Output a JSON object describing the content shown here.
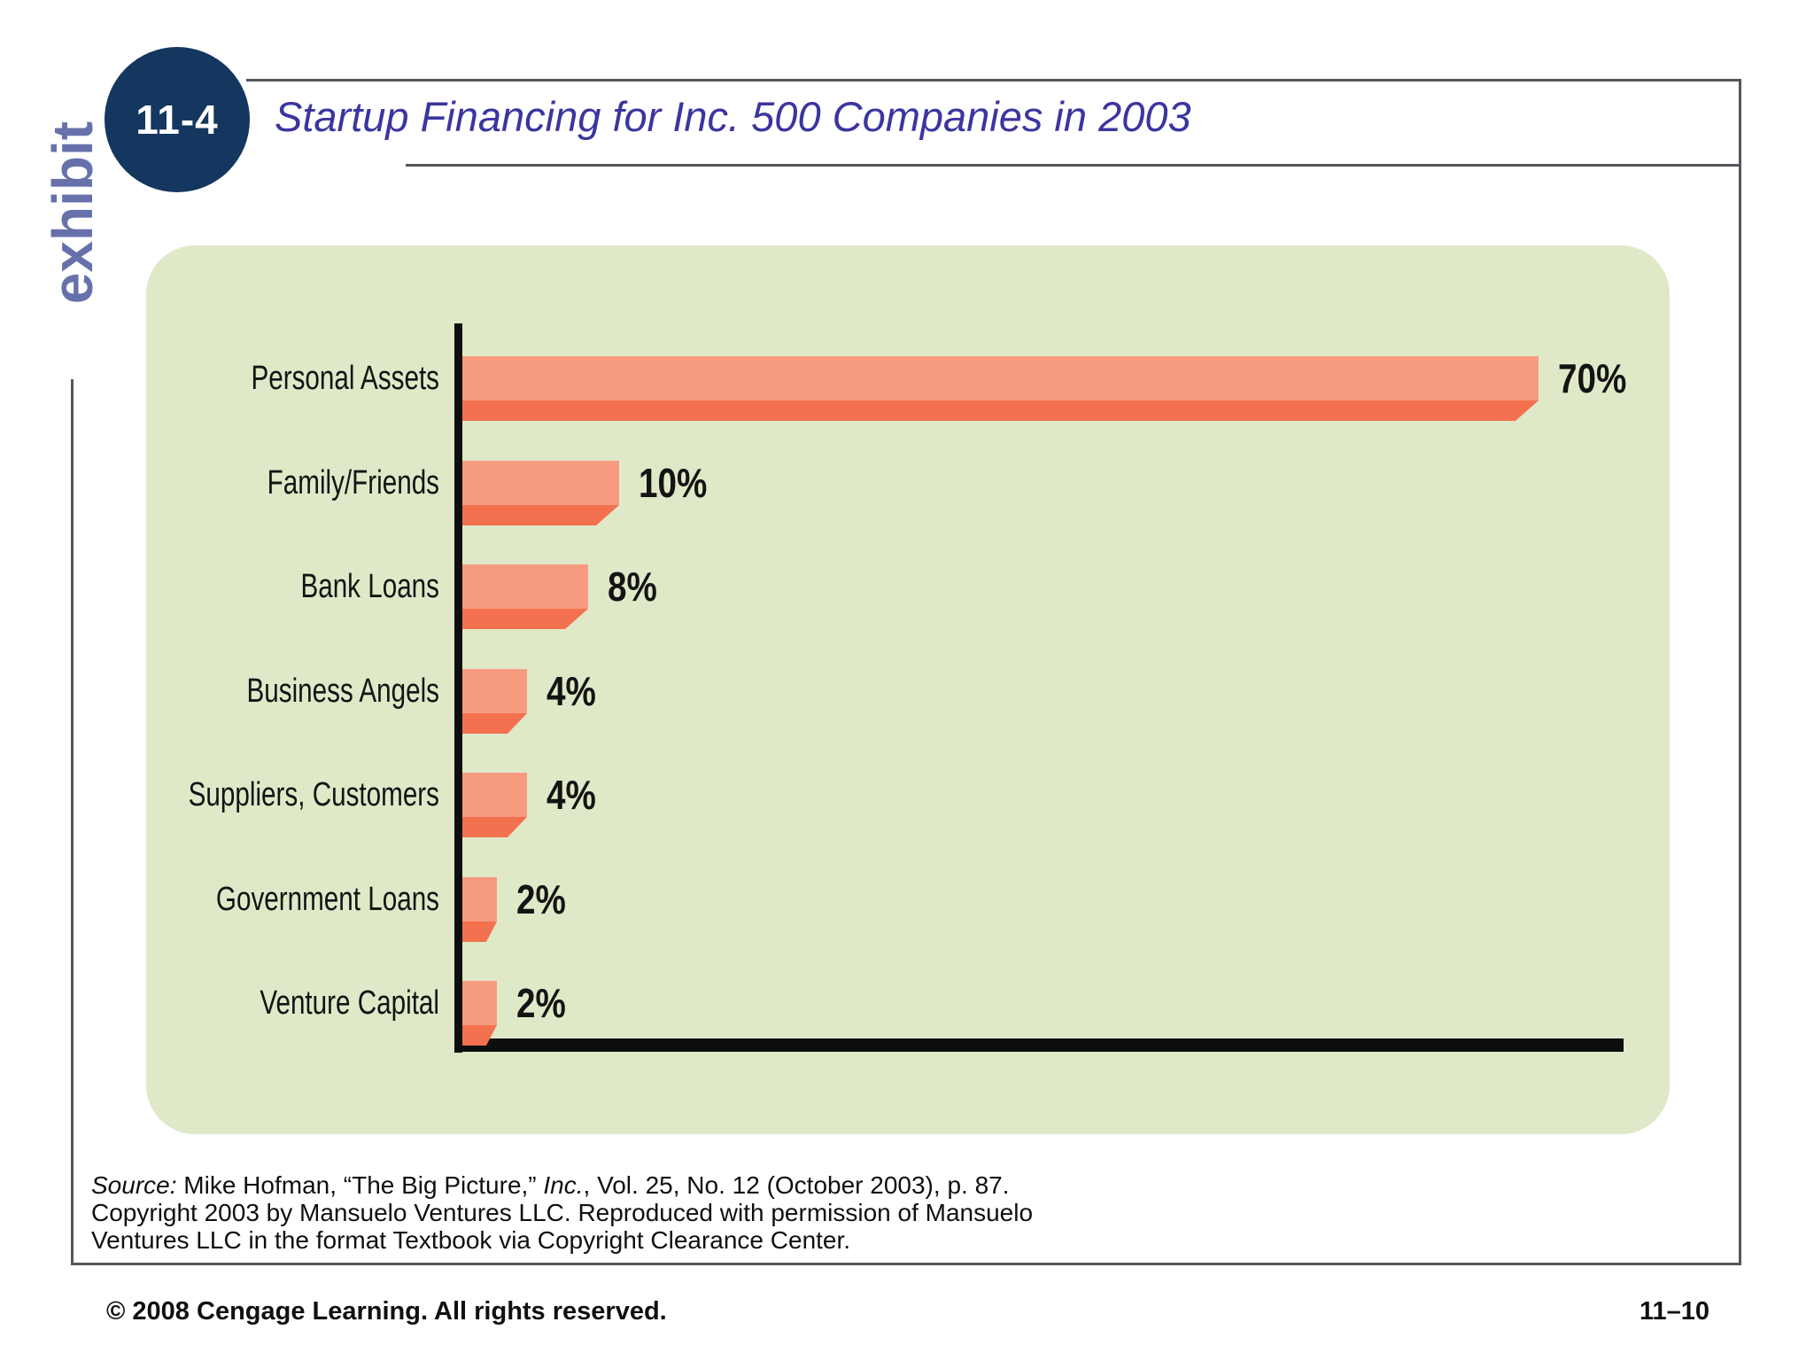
{
  "page": {
    "exhibit_label": "exhibit",
    "badge_label": "11-4",
    "title": "Startup Financing for Inc. 500 Companies in 2003",
    "footer_left": "© 2008 Cengage Learning. All rights reserved.",
    "footer_right": "11–10",
    "colors": {
      "title": "#3B35A0",
      "exhibit": "#6671AC",
      "badge_bg": "#14365F",
      "frame_line": "#54565B"
    }
  },
  "source_note": {
    "part1_italic": "Source:",
    "part2": " Mike Hofman, “The Big Picture,” ",
    "part3_italic": "Inc.",
    "part4": ", Vol. 25, No. 12 (October 2003), p. 87.",
    "line2": "Copyright 2003 by Mansuelo Ventures LLC. Reproduced with permission of Mansuelo",
    "line3": "Ventures LLC in the format Textbook via Copyright Clearance Center."
  },
  "chart_data": {
    "type": "bar",
    "orientation": "horizontal",
    "title": "Startup Financing for Inc. 500 Companies in 2003",
    "categories": [
      "Personal Assets",
      "Family/Friends",
      "Bank Loans",
      "Business Angels",
      "Suppliers, Customers",
      "Government Loans",
      "Venture Capital"
    ],
    "values": [
      70,
      10,
      8,
      4,
      4,
      2,
      2
    ],
    "value_labels": [
      "70%",
      "10%",
      "8%",
      "4%",
      "4%",
      "2%",
      "2%"
    ],
    "xlim": [
      0,
      70
    ],
    "grid": false,
    "legend": false,
    "style_3d": true,
    "colors": {
      "bar_top": "#F79B80",
      "bar_front": "#F4714F",
      "panel_bg": "#DFE9C8",
      "axis": "#0E0E0E"
    }
  }
}
